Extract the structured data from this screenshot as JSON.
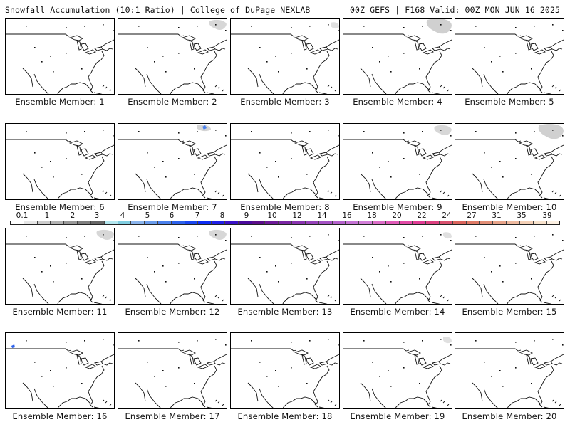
{
  "header": {
    "left_title": "Snowfall Accumulation (10:1 Ratio) | College of DuPage NEXLAB",
    "right_title": "00Z GEFS | F168 Valid: 00Z MON JUN 16 2025"
  },
  "colorbar": {
    "labels": [
      "0.1",
      "1",
      "2",
      "3",
      "4",
      "5",
      "6",
      "7",
      "8",
      "9",
      "10",
      "12",
      "14",
      "16",
      "18",
      "20",
      "22",
      "24",
      "27",
      "31",
      "35",
      "39"
    ],
    "colors": [
      "#ffffff",
      "#e6e6e6",
      "#cccccc",
      "#b3b3b3",
      "#999999",
      "#7f7f7f",
      "#666666",
      "#b3e6ee",
      "#7fcde0",
      "#8ab4ec",
      "#6a9cec",
      "#4a80ec",
      "#2d62ec",
      "#1a46f0",
      "#0d2cf4",
      "#2020e8",
      "#3a10c8",
      "#4a0a9c",
      "#5b0d8a",
      "#6d1a98",
      "#7a26a4",
      "#8934b0",
      "#9642ba",
      "#a452c4",
      "#b462cc",
      "#c472d4",
      "#d27ed8",
      "#dc6ec8",
      "#e05ab8",
      "#e24aa6",
      "#e03c94",
      "#dc4080",
      "#d8506e",
      "#da645c",
      "#de7a66",
      "#e28e76",
      "#e8a48a",
      "#eebaa0",
      "#f4d0b6",
      "#f8e2cc",
      "#fcf0e2"
    ],
    "right_padding_color": "#fcf0e2"
  },
  "panels": [
    {
      "label": "Ensemble Member: 1",
      "snow": []
    },
    {
      "label": "Ensemble Member: 2",
      "snow": [
        "ne"
      ]
    },
    {
      "label": "Ensemble Member: 3",
      "snow": [
        "ne-small"
      ]
    },
    {
      "label": "Ensemble Member: 4",
      "snow": [
        "ne-large"
      ]
    },
    {
      "label": "Ensemble Member: 5",
      "snow": []
    },
    {
      "label": "Ensemble Member: 6",
      "snow": []
    },
    {
      "label": "Ensemble Member: 7",
      "snow": [
        "n-blue"
      ]
    },
    {
      "label": "Ensemble Member: 8",
      "snow": []
    },
    {
      "label": "Ensemble Member: 9",
      "snow": [
        "ne"
      ]
    },
    {
      "label": "Ensemble Member: 10",
      "snow": [
        "ne-large"
      ]
    },
    {
      "label": "Ensemble Member: 11",
      "snow": [
        "ne"
      ]
    },
    {
      "label": "Ensemble Member: 12",
      "snow": [
        "ne"
      ]
    },
    {
      "label": "Ensemble Member: 13",
      "snow": []
    },
    {
      "label": "Ensemble Member: 14",
      "snow": [
        "ne-small"
      ]
    },
    {
      "label": "Ensemble Member: 15",
      "snow": []
    },
    {
      "label": "Ensemble Member: 16",
      "snow": [
        "nw-blue"
      ]
    },
    {
      "label": "Ensemble Member: 17",
      "snow": []
    },
    {
      "label": "Ensemble Member: 18",
      "snow": []
    },
    {
      "label": "Ensemble Member: 19",
      "snow": [
        "ne-small"
      ]
    },
    {
      "label": "Ensemble Member: 20",
      "snow": []
    }
  ]
}
